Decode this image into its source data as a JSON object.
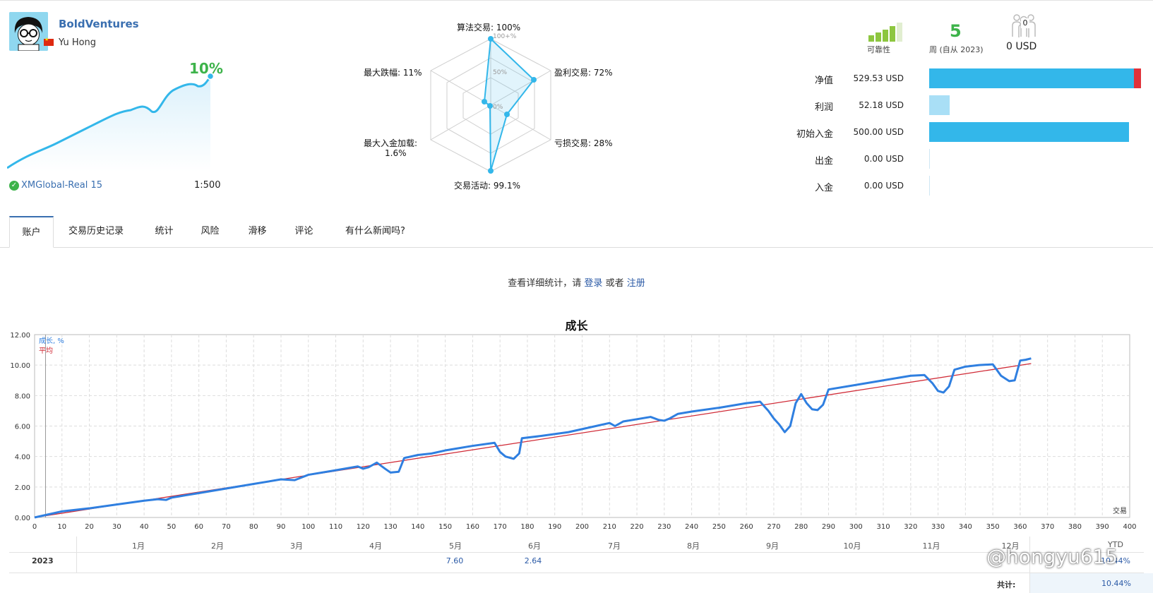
{
  "account": {
    "name": "BoldVentures",
    "owner": "Yu Hong",
    "gain_pct": "10%",
    "broker": "XMGlobal-Real 15",
    "leverage": "1:500"
  },
  "radar": {
    "labels": {
      "algo": "算法交易: 100%",
      "profit_trades": "盈利交易: 72%",
      "loss_trades": "亏损交易: 28%",
      "activity": "交易活动: 99.1%",
      "max_load_1": "最大入金加载:",
      "max_load_2": "1.6%",
      "max_drawdown": "最大跌幅: 11%"
    },
    "ticks": {
      "t100": "100+%",
      "t50": "50%",
      "t0": "0%"
    },
    "values_pct": {
      "algo": 100,
      "profit_trades": 72,
      "loss_trades": 28,
      "activity": 99.1,
      "max_load": 1.6,
      "max_drawdown": 11
    }
  },
  "summary": {
    "reliability_label": "可靠性",
    "weeks_value": "5",
    "weeks_label": "周 (自从 2023)",
    "followers_count": "0",
    "followers_value": "0 USD",
    "rows": [
      {
        "label": "净值",
        "value": "529.53 USD",
        "fill": 1.0,
        "color": "#33b7ea"
      },
      {
        "label": "利润",
        "value": "52.18 USD",
        "fill": 0.098,
        "color": "#a9dff6"
      },
      {
        "label": "初始入金",
        "value": "500.00 USD",
        "fill": 0.944,
        "color": "#33b7ea"
      },
      {
        "label": "出金",
        "value": "0.00 USD",
        "fill": 0.0,
        "color": "#33b7ea"
      },
      {
        "label": "入金",
        "value": "0.00 USD",
        "fill": 0.0,
        "color": "#33b7ea"
      }
    ]
  },
  "tabs": [
    "账户",
    "交易历史记录",
    "统计",
    "风险",
    "滑移",
    "评论",
    "有什么新闻吗?"
  ],
  "login_msg": {
    "prefix": "查看详细统计，请",
    "login": "登录",
    "or": "或者",
    "register": "注册"
  },
  "chart_data": {
    "type": "line",
    "title": "成长",
    "xlabel": "交易",
    "xlim": [
      0,
      400
    ],
    "ylim": [
      0,
      12
    ],
    "x_ticks": [
      0,
      10,
      20,
      30,
      40,
      50,
      60,
      70,
      80,
      90,
      100,
      110,
      120,
      130,
      140,
      150,
      160,
      170,
      180,
      190,
      200,
      210,
      220,
      230,
      240,
      250,
      260,
      270,
      280,
      290,
      300,
      310,
      320,
      330,
      340,
      350,
      360,
      370,
      380,
      390,
      400
    ],
    "y_ticks": [
      "0.00",
      "2.00",
      "4.00",
      "6.00",
      "8.00",
      "10.00",
      "12.00"
    ],
    "legend": [
      "成长, %",
      "平均"
    ],
    "series": [
      {
        "name": "成长, %",
        "color": "#2f7fe0",
        "x": [
          0,
          10,
          20,
          30,
          40,
          45,
          48,
          50,
          55,
          60,
          70,
          80,
          90,
          95,
          100,
          110,
          118,
          120,
          122,
          125,
          128,
          130,
          133,
          135,
          140,
          145,
          150,
          160,
          168,
          170,
          172,
          175,
          177,
          178,
          185,
          195,
          205,
          210,
          212,
          215,
          225,
          228,
          230,
          232,
          235,
          240,
          250,
          260,
          265,
          268,
          270,
          272,
          274,
          276,
          278,
          280,
          282,
          284,
          286,
          288,
          290,
          300,
          310,
          320,
          325,
          328,
          330,
          332,
          334,
          336,
          340,
          345,
          350,
          353,
          356,
          358,
          360,
          362,
          364
        ],
        "y": [
          0,
          0.4,
          0.6,
          0.85,
          1.1,
          1.2,
          1.15,
          1.3,
          1.45,
          1.6,
          1.9,
          2.2,
          2.5,
          2.45,
          2.8,
          3.1,
          3.35,
          3.2,
          3.3,
          3.6,
          3.2,
          2.95,
          3.0,
          3.9,
          4.1,
          4.2,
          4.4,
          4.7,
          4.9,
          4.3,
          4.0,
          3.85,
          4.2,
          5.2,
          5.35,
          5.6,
          6.0,
          6.2,
          6.0,
          6.3,
          6.6,
          6.4,
          6.35,
          6.5,
          6.8,
          6.95,
          7.2,
          7.5,
          7.6,
          7.0,
          6.5,
          6.1,
          5.6,
          6.0,
          7.5,
          8.1,
          7.5,
          7.1,
          7.05,
          7.4,
          8.4,
          8.7,
          9.0,
          9.3,
          9.35,
          8.8,
          8.3,
          8.2,
          8.6,
          9.7,
          9.9,
          10.0,
          10.05,
          9.3,
          8.95,
          9.0,
          10.3,
          10.35,
          10.44
        ]
      },
      {
        "name": "平均",
        "color": "#d02a36",
        "x": [
          0,
          364
        ],
        "y": [
          0,
          10.1
        ]
      }
    ],
    "months": [
      "1月",
      "2月",
      "3月",
      "4月",
      "5月",
      "6月",
      "7月",
      "8月",
      "9月",
      "10月",
      "11月",
      "12月",
      "YTD"
    ],
    "year_row": {
      "year": "2023",
      "may": "7.60",
      "jun": "2.64",
      "ytd": "10.44%"
    },
    "total_label": "共计:",
    "total_value": "10.44%"
  },
  "watermark": "@hongyu615",
  "colors": {
    "accent": "#2b5aa6",
    "green": "#3db34a",
    "line": "#33b7ea"
  }
}
